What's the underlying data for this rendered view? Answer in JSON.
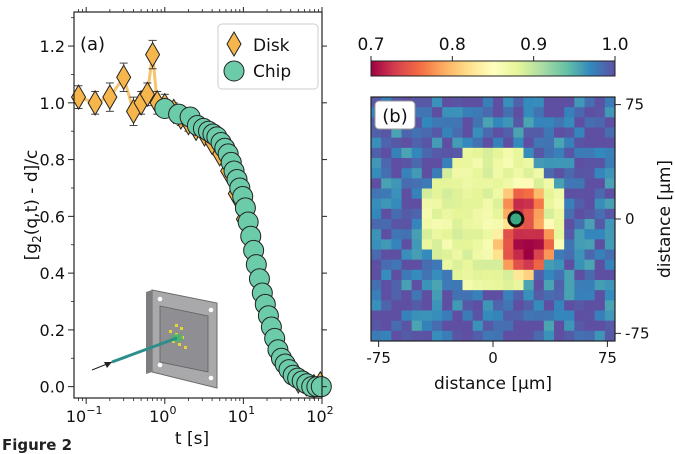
{
  "caption_fragment": "Figure 2",
  "colors": {
    "disk_fill": "#f6b64c",
    "disk_line": "#f6c36e",
    "chip_fill": "#6ccba8",
    "edge": "#222222",
    "errorbar": "#444444",
    "marker_center": "#3aa882"
  },
  "chart_data": [
    {
      "type": "scatter",
      "panel_label": "(a)",
      "xlabel": "t [s]",
      "ylabel": "[g₂(q,t) - d]/c",
      "xscale": "log",
      "xlim": [
        0.07,
        100
      ],
      "ylim": [
        -0.04,
        1.32
      ],
      "xticks": [
        {
          "value": 0.1,
          "label": "10",
          "exp": "−1"
        },
        {
          "value": 1,
          "label": "10",
          "exp": "0"
        },
        {
          "value": 10,
          "label": "10",
          "exp": "1"
        },
        {
          "value": 100,
          "label": "10",
          "exp": "2"
        }
      ],
      "yticks": [
        {
          "value": 0.0,
          "label": "0.0"
        },
        {
          "value": 0.2,
          "label": "0.2"
        },
        {
          "value": 0.4,
          "label": "0.4"
        },
        {
          "value": 0.6,
          "label": "0.6"
        },
        {
          "value": 0.8,
          "label": "0.8"
        },
        {
          "value": 1.0,
          "label": "1.0"
        },
        {
          "value": 1.2,
          "label": "1.2"
        }
      ],
      "legend_position": "top-right",
      "grid": false,
      "series": [
        {
          "name": "Disk",
          "marker": "diamond",
          "points": [
            {
              "x": 0.08,
              "y": 1.02,
              "err": 0.04
            },
            {
              "x": 0.13,
              "y": 1.0,
              "err": 0.04
            },
            {
              "x": 0.2,
              "y": 1.02,
              "err": 0.05
            },
            {
              "x": 0.3,
              "y": 1.09,
              "err": 0.05
            },
            {
              "x": 0.4,
              "y": 0.97,
              "err": 0.05
            },
            {
              "x": 0.5,
              "y": 1.0,
              "err": 0.04
            },
            {
              "x": 0.6,
              "y": 1.03,
              "err": 0.04
            },
            {
              "x": 0.7,
              "y": 1.17,
              "err": 0.05
            },
            {
              "x": 0.8,
              "y": 1.0,
              "err": 0.04
            },
            {
              "x": 1.0,
              "y": 0.99,
              "err": 0.04
            },
            {
              "x": 1.3,
              "y": 0.97,
              "err": 0.03
            },
            {
              "x": 1.6,
              "y": 0.95,
              "err": 0.03
            },
            {
              "x": 2.0,
              "y": 0.93,
              "err": 0.03
            },
            {
              "x": 2.5,
              "y": 0.91,
              "err": 0.02
            },
            {
              "x": 3.2,
              "y": 0.89,
              "err": 0.02
            },
            {
              "x": 4.0,
              "y": 0.86,
              "err": 0.02
            },
            {
              "x": 5.0,
              "y": 0.82,
              "err": 0.02
            },
            {
              "x": 6.3,
              "y": 0.76,
              "err": 0.02
            },
            {
              "x": 7.9,
              "y": 0.68,
              "err": 0.02
            },
            {
              "x": 10,
              "y": 0.59,
              "err": 0.02
            },
            {
              "x": 12.6,
              "y": 0.48,
              "err": 0.02
            },
            {
              "x": 15.8,
              "y": 0.37,
              "err": 0.02
            },
            {
              "x": 20,
              "y": 0.26,
              "err": 0.02
            },
            {
              "x": 25,
              "y": 0.17,
              "err": 0.02
            },
            {
              "x": 31.6,
              "y": 0.1,
              "err": 0.02
            },
            {
              "x": 39.8,
              "y": 0.05,
              "err": 0.02
            },
            {
              "x": 50,
              "y": 0.02,
              "err": 0.02
            },
            {
              "x": 63,
              "y": 0.01,
              "err": 0.02
            },
            {
              "x": 79,
              "y": 0.0,
              "err": 0.02
            },
            {
              "x": 95,
              "y": 0.01,
              "err": 0.02
            }
          ]
        },
        {
          "name": "Chip",
          "marker": "circle",
          "points": [
            {
              "x": 1.0,
              "y": 0.98
            },
            {
              "x": 1.5,
              "y": 0.96
            },
            {
              "x": 2.1,
              "y": 0.95
            },
            {
              "x": 2.6,
              "y": 0.92
            },
            {
              "x": 3.1,
              "y": 0.91
            },
            {
              "x": 3.6,
              "y": 0.9
            },
            {
              "x": 4.1,
              "y": 0.89
            },
            {
              "x": 4.6,
              "y": 0.88
            },
            {
              "x": 5.2,
              "y": 0.86
            },
            {
              "x": 5.8,
              "y": 0.84
            },
            {
              "x": 6.4,
              "y": 0.82
            },
            {
              "x": 7.0,
              "y": 0.79
            },
            {
              "x": 7.6,
              "y": 0.76
            },
            {
              "x": 8.3,
              "y": 0.73
            },
            {
              "x": 9.0,
              "y": 0.7
            },
            {
              "x": 9.8,
              "y": 0.67
            },
            {
              "x": 10.6,
              "y": 0.63
            },
            {
              "x": 11.5,
              "y": 0.58
            },
            {
              "x": 12.4,
              "y": 0.53
            },
            {
              "x": 13.5,
              "y": 0.48
            },
            {
              "x": 14.6,
              "y": 0.43
            },
            {
              "x": 16,
              "y": 0.38
            },
            {
              "x": 17.4,
              "y": 0.33
            },
            {
              "x": 19,
              "y": 0.29
            },
            {
              "x": 20.8,
              "y": 0.25
            },
            {
              "x": 22.7,
              "y": 0.21
            },
            {
              "x": 25,
              "y": 0.17
            },
            {
              "x": 27.5,
              "y": 0.13
            },
            {
              "x": 30.5,
              "y": 0.1
            },
            {
              "x": 34,
              "y": 0.08
            },
            {
              "x": 38,
              "y": 0.06
            },
            {
              "x": 43,
              "y": 0.04
            },
            {
              "x": 49,
              "y": 0.03
            },
            {
              "x": 56,
              "y": 0.02
            },
            {
              "x": 64,
              "y": 0.01
            },
            {
              "x": 74,
              "y": 0.0
            },
            {
              "x": 86,
              "y": 0.0
            },
            {
              "x": 98,
              "y": 0.0
            }
          ]
        }
      ]
    },
    {
      "type": "heatmap",
      "panel_label": "(b)",
      "xlabel": "distance [μm]",
      "ylabel": "distance [μm]",
      "xlim": [
        -80,
        80
      ],
      "ylim": [
        -80,
        80
      ],
      "grid_size": [
        24,
        24
      ],
      "xticks": [
        {
          "value": -75,
          "label": "-75"
        },
        {
          "value": 0,
          "label": "0"
        },
        {
          "value": 75,
          "label": "75"
        }
      ],
      "yticks": [
        {
          "value": -75,
          "label": "-75"
        },
        {
          "value": 0,
          "label": "0"
        },
        {
          "value": 75,
          "label": "75"
        }
      ],
      "colorbar": {
        "min": 0.7,
        "max": 1.0,
        "colormap": "Spectral",
        "position": "top",
        "ticks": [
          {
            "value": 0.7,
            "label": "0.7"
          },
          {
            "value": 0.8,
            "label": "0.8"
          },
          {
            "value": 0.9,
            "label": "0.9"
          },
          {
            "value": 1.0,
            "label": "1.0"
          }
        ]
      },
      "field": {
        "background": 0.985,
        "background_noise": 0.03,
        "disk_center": [
          0,
          0
        ],
        "disk_radius": 47,
        "disk_value": 0.875,
        "disk_noise": 0.015,
        "hot_spots": [
          {
            "center": [
              20,
              9
            ],
            "radius": 16,
            "value": 0.73
          },
          {
            "center": [
              22,
              -18
            ],
            "radius": 22,
            "value": 0.71
          }
        ]
      },
      "marker": {
        "x": 15,
        "y": 0
      }
    }
  ]
}
